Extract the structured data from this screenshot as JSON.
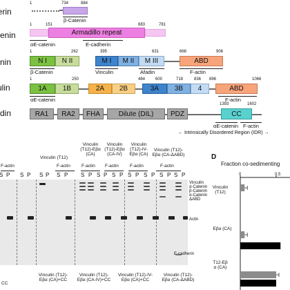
{
  "panel_b": {
    "rows": [
      {
        "name": "herin",
        "nums": [
          "1",
          "734",
          "884"
        ],
        "domain_label": "",
        "labels_below": [
          "β-Catenin"
        ]
      },
      {
        "name": "atenin",
        "nums": [
          "1",
          "151",
          "683",
          "781"
        ],
        "domain_label": "Armadillo repeat",
        "labels_below": [
          "αE-catenin",
          "E-cadherin"
        ]
      },
      {
        "name": "tenin",
        "nums": [
          "1",
          "262",
          "395",
          "631",
          "668",
          "906"
        ],
        "domains": [
          "N I",
          "N II",
          "M I",
          "M II",
          "M III",
          "ABD"
        ],
        "labels_below": [
          "β-Catenin",
          "Vinculin",
          "Afadin",
          "F-actin"
        ]
      },
      {
        "name": "culin",
        "nums": [
          "1",
          "250",
          "484",
          "600",
          "718",
          "836",
          "896",
          "1066"
        ],
        "domains": [
          "1A",
          "1B",
          "2A",
          "2B",
          "3A",
          "3B",
          "4",
          "ABD"
        ],
        "labels_below": [
          "αE-catenin",
          "F-actin"
        ]
      },
      {
        "name": "fadin",
        "nums": [
          "1393",
          "1602"
        ],
        "domains": [
          "RA1",
          "RA2",
          "FHA",
          "Dilute (DIL)",
          "PDZ",
          "CC"
        ],
        "labels_below": [
          "αE-catenin",
          "F-actin"
        ],
        "idr_label": "← Intrinsically Disordered Region (IDR) →"
      }
    ]
  },
  "panel_c": {
    "lane_headers": [
      {
        "title": "",
        "sub": "F-actin"
      },
      {
        "title": "Vinculin (T12)",
        "sub": "F-actin"
      },
      {
        "title": "Vinculin\n(T12)-Eβα\n(CA)",
        "sub": "F-actin"
      },
      {
        "title": "Vinculin\n(T12)-Eβα\n(CA-IV)",
        "sub": "F-actin"
      },
      {
        "title": "Vinculin\n(T12)-IV-\nEβα (CA)",
        "sub": "F-actin"
      },
      {
        "title": "Vinculin (T12)-\nEβα (CA-ΔABD)",
        "sub": "F-actin"
      }
    ],
    "lane_labels": [
      "S",
      "P",
      "S",
      "P",
      "S",
      "P",
      "S",
      "P",
      "S",
      "P",
      "S",
      "P",
      "S",
      "P",
      "S",
      "P",
      "S",
      "P",
      "S",
      "P",
      "S",
      "P"
    ],
    "right_labels": [
      "Vinculin",
      "α-Catenin",
      "β-Catenin",
      "α-Catenin",
      "ΔABD",
      "Actin",
      "E-cadherin"
    ],
    "bottom_labels": [
      "CC",
      "Vinculin (T12)-\nEβα (CA)+CC",
      "Vinculin (T12)-\nEβα (CA-IV)+CC",
      "Vinculin (T12)-IV-\nEβα (CA)+CC",
      "Vinculin (T12)-\nEβα (CA-ΔABD)"
    ]
  },
  "panel_d": {
    "letter": "D",
    "title": "Fraction co-sedimenting",
    "chart_data": {
      "type": "bar",
      "xlim": [
        0,
        1
      ],
      "x_ticks": [
        "0",
        "0.5"
      ],
      "categories": [
        "Vinculin\n(T12)",
        "Eβα (CA)",
        "T12-Eβ\nα (CA)"
      ],
      "series": [
        {
          "color": "#8c8c8c",
          "values": [
            0.06,
            0.06,
            0.5
          ]
        },
        {
          "color": "#000000",
          "values": [
            0,
            0.56,
            0.5
          ]
        }
      ]
    }
  }
}
